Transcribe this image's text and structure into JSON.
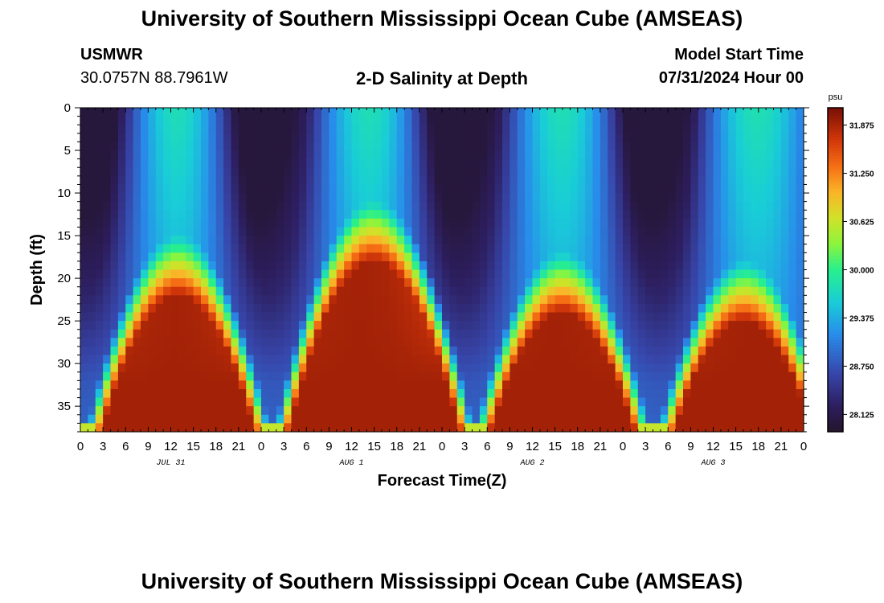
{
  "page": {
    "title": "University of Southern Mississippi Ocean Cube (AMSEAS)",
    "title_repeat": "University of Southern Mississippi Ocean Cube (AMSEAS)",
    "station_id": "USMWR",
    "location": "30.0757N  88.7961W",
    "model_start_label": "Model Start Time",
    "model_start_value": "07/31/2024 Hour 00"
  },
  "chart_data": {
    "type": "heatmap",
    "title": "2-D Salinity at Depth",
    "xlabel": "Forecast Time(Z)",
    "ylabel": "Depth (ft)",
    "x_range_hours": [
      0,
      96
    ],
    "y_range_ft": [
      0,
      38
    ],
    "x_tick_labels": [
      "0",
      "3",
      "6",
      "9",
      "12",
      "15",
      "18",
      "21",
      "0",
      "3",
      "6",
      "9",
      "12",
      "15",
      "18",
      "21",
      "0",
      "3",
      "6",
      "9",
      "12",
      "15",
      "18",
      "21",
      "0",
      "3",
      "6",
      "9",
      "12",
      "15",
      "18",
      "21",
      "0"
    ],
    "date_labels": [
      {
        "label": "JUL 31",
        "hour": 12
      },
      {
        "label": "AUG 1",
        "hour": 36
      },
      {
        "label": "AUG 2",
        "hour": 60
      },
      {
        "label": "AUG 3",
        "hour": 84
      }
    ],
    "y_ticks": [
      0,
      5,
      10,
      15,
      20,
      25,
      30,
      35
    ],
    "colorbar": {
      "unit": "psu",
      "range": [
        27.9,
        32.1
      ],
      "tick_values": [
        28.125,
        28.75,
        29.375,
        30.0,
        30.625,
        31.25,
        31.875
      ],
      "tick_labels": [
        "28.125",
        "28.750",
        "29.375",
        "30.000",
        "30.625",
        "31.250",
        "31.875"
      ]
    },
    "field_model": {
      "deep_value": 31.9,
      "deep_max_value": 32.0,
      "surface_min_value": 28.0,
      "high_salinity_lobes_center_hours": [
        13,
        39,
        64,
        88
      ],
      "high_salinity_lobe_top_depth_ft": [
        15,
        11,
        17,
        18
      ],
      "low_salinity_surface_minima_hours": [
        1,
        24,
        50,
        76
      ],
      "fresh_tongue_min_depth_ft": [
        38,
        38,
        37,
        37
      ]
    }
  }
}
